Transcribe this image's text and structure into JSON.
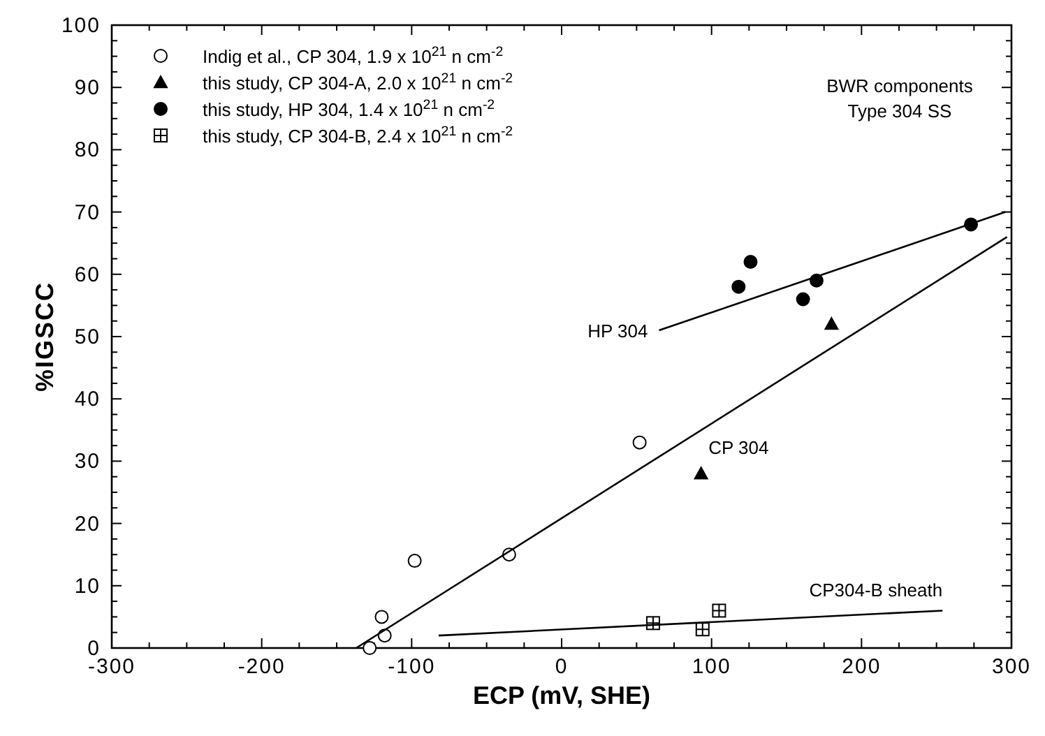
{
  "chart_data": {
    "type": "scatter",
    "xlabel": "ECP  (mV,  SHE)",
    "ylabel": "%IGSCC",
    "xlim": [
      -300,
      300
    ],
    "xticks": [
      -300,
      -200,
      -100,
      0,
      100,
      200,
      300
    ],
    "ylim": [
      0,
      100
    ],
    "yticks": [
      0,
      10,
      20,
      30,
      40,
      50,
      60,
      70,
      80,
      90,
      100
    ],
    "grid": false,
    "legend": "top left",
    "series": [
      {
        "name": "Indig et al., CP 304, 1.9 x 10$^{21}$ n cm$^{-2}$",
        "color": "#ffffff",
        "marker": "circle",
        "x": [
          -128,
          -118,
          -120,
          -98,
          -35,
          52
        ],
        "values": [
          0,
          2,
          5,
          14,
          15,
          33
        ]
      },
      {
        "name": "this study, CP 304-A, 2.0 x 10$^{21}$ n cm$^{-2}$",
        "color": "#000000",
        "marker": "triangle",
        "x": [
          93,
          180
        ],
        "values": [
          28,
          52
        ]
      },
      {
        "name": "this study, HP 304, 1.4 x 10$^{21}$ n cm$^{-2}$",
        "color": "#000000",
        "marker": "circle",
        "x": [
          118,
          126,
          161,
          170,
          273
        ],
        "values": [
          58,
          62,
          56,
          59,
          68
        ]
      },
      {
        "name": "this study, CP 304-B, 2.4 x 10$^{21}$ n cm$^{-2}$",
        "color": "#ffffff",
        "marker": "square",
        "x": [
          61,
          94,
          105
        ],
        "values": [
          4,
          3,
          6
        ]
      },
      {
        "type": "line",
        "color": "#000000",
        "marker": "none",
        "x": [
          -137,
          297
        ],
        "values": [
          0,
          66
        ]
      },
      {
        "type": "line",
        "color": "#000000",
        "marker": "none",
        "x": [
          65,
          296
        ],
        "values": [
          51,
          70
        ]
      },
      {
        "type": "line",
        "color": "#000000",
        "marker": "none",
        "x": [
          -82,
          254
        ],
        "values": [
          2,
          6
        ]
      }
    ],
    "annotations": [
      {
        "text": "HP 304",
        "x": 65,
        "y": 51
      },
      {
        "text": "CP 304",
        "x": 118,
        "y": 39
      },
      {
        "text": "CP304-B sheath",
        "x": 254,
        "y": 6
      },
      "BWR components",
      "Type 304 SS"
    ]
  }
}
